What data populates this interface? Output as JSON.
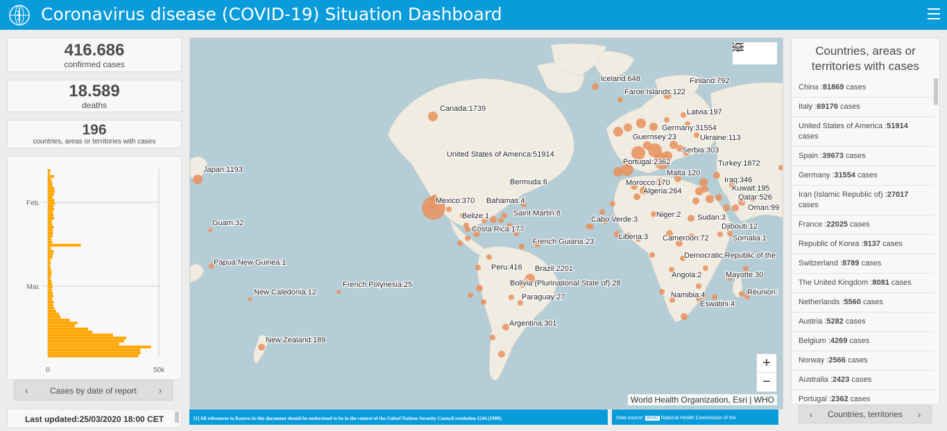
{
  "header": {
    "title": "Coronavirus disease (COVID-19) Situation Dashboard",
    "logo_icon": "who-emblem-icon",
    "menu_icon": "hamburger-menu-icon"
  },
  "stats": {
    "confirmed": {
      "value": "416.686",
      "label": "confirmed cases"
    },
    "deaths": {
      "value": "18.589",
      "label": "deaths"
    },
    "countries": {
      "value": "196",
      "label": "countries, areas or territories with cases"
    }
  },
  "chart_data": {
    "type": "bar",
    "orientation": "horizontal",
    "title": "",
    "xlabel": "",
    "ylabel": "",
    "xlim": [
      0,
      50000
    ],
    "x_ticks": [
      "0",
      "50k"
    ],
    "y_ticks": [
      "Feb.",
      "Mar."
    ],
    "color": "#ffa600",
    "grid": true,
    "values": [
      1200,
      900,
      2800,
      1500,
      1900,
      2100,
      2900,
      3100,
      2700,
      2200,
      2900,
      3200,
      2600,
      2800,
      2300,
      2500,
      2800,
      1800,
      2000,
      2600,
      2200,
      2300,
      2100,
      1600,
      2000,
      14800,
      1400,
      2600,
      2300,
      2100,
      1200,
      1300,
      1100,
      1400,
      1700,
      1600,
      1200,
      1700,
      1900,
      2100,
      1800,
      2200,
      2500,
      1900,
      2600,
      2400,
      2900,
      3700,
      5000,
      5700,
      9800,
      13300,
      12200,
      18100,
      20100,
      29300,
      35300,
      34400,
      32100,
      46400,
      41600,
      41700,
      40800
    ]
  },
  "chart_nav": {
    "caption": "Cases by date of report",
    "prev_icon": "chevron-left-icon",
    "next_icon": "chevron-right-icon"
  },
  "last_updated": "Last updated:25/03/2020 18:00 CET",
  "map": {
    "labels": [
      {
        "text": "Iceland:648",
        "x": 592,
        "y": 62
      },
      {
        "text": "Finland:792",
        "x": 720,
        "y": 65
      },
      {
        "text": "Faroe Islands:122",
        "x": 626,
        "y": 81
      },
      {
        "text": "Canada:1739",
        "x": 360,
        "y": 105
      },
      {
        "text": "Latvia:197",
        "x": 716,
        "y": 110
      },
      {
        "text": "Germany:31554",
        "x": 680,
        "y": 133
      },
      {
        "text": "Guernsey:23",
        "x": 638,
        "y": 146
      },
      {
        "text": "Ukraine:113",
        "x": 735,
        "y": 147
      },
      {
        "text": "United States of America:51914",
        "x": 370,
        "y": 171
      },
      {
        "text": "Serbia:303",
        "x": 709,
        "y": 165
      },
      {
        "text": "Japan:1193",
        "x": 19,
        "y": 193
      },
      {
        "text": "Portugal:2362",
        "x": 624,
        "y": 182
      },
      {
        "text": "Turkey:1872",
        "x": 761,
        "y": 184
      },
      {
        "text": "Malta:120",
        "x": 687,
        "y": 198
      },
      {
        "text": "Bermuda:6",
        "x": 461,
        "y": 211
      },
      {
        "text": "Morocco:170",
        "x": 628,
        "y": 212
      },
      {
        "text": "Iraq:346",
        "x": 770,
        "y": 208
      },
      {
        "text": "Algeria:264",
        "x": 653,
        "y": 224
      },
      {
        "text": "Kuwait:195",
        "x": 781,
        "y": 220
      },
      {
        "text": "Qatar:526",
        "x": 790,
        "y": 233
      },
      {
        "text": "Mexico:370",
        "x": 354,
        "y": 238
      },
      {
        "text": "Bahamas:4",
        "x": 427,
        "y": 238
      },
      {
        "text": "Oman:99",
        "x": 804,
        "y": 248
      },
      {
        "text": "Belize:1",
        "x": 392,
        "y": 260
      },
      {
        "text": "Saint Martin:8",
        "x": 466,
        "y": 256
      },
      {
        "text": "Niger:2",
        "x": 672,
        "y": 258
      },
      {
        "text": "Guam:32",
        "x": 32,
        "y": 270
      },
      {
        "text": "Cabo Verde:3",
        "x": 578,
        "y": 265
      },
      {
        "text": "Sudan:3",
        "x": 731,
        "y": 262
      },
      {
        "text": "Djibouti:12",
        "x": 766,
        "y": 275
      },
      {
        "text": "Costa Rica:177",
        "x": 406,
        "y": 279
      },
      {
        "text": "Liberia:3",
        "x": 618,
        "y": 290
      },
      {
        "text": "Cameroon:72",
        "x": 681,
        "y": 292
      },
      {
        "text": "Somalia:1",
        "x": 782,
        "y": 292
      },
      {
        "text": "French Guiana:23",
        "x": 494,
        "y": 297
      },
      {
        "text": "Democratic Republic of the",
        "x": 712,
        "y": 317
      },
      {
        "text": "Papua New Guinea:1",
        "x": 34,
        "y": 327
      },
      {
        "text": "Peru:416",
        "x": 434,
        "y": 334
      },
      {
        "text": "Brazil:2201",
        "x": 497,
        "y": 336
      },
      {
        "text": "Angola:2",
        "x": 694,
        "y": 345
      },
      {
        "text": "Mayotte:30",
        "x": 772,
        "y": 345
      },
      {
        "text": "French Polynesia:25",
        "x": 220,
        "y": 359
      },
      {
        "text": "Bolivia (Plurinational State of):28",
        "x": 461,
        "y": 357
      },
      {
        "text": "New Caledonia:12",
        "x": 92,
        "y": 370
      },
      {
        "text": "Réunion:",
        "x": 803,
        "y": 370
      },
      {
        "text": "Namibia:4",
        "x": 693,
        "y": 374
      },
      {
        "text": "Paraguay:27",
        "x": 478,
        "y": 377
      },
      {
        "text": "Eswatini:4",
        "x": 735,
        "y": 387
      },
      {
        "text": "Argentina:301",
        "x": 460,
        "y": 415
      },
      {
        "text": "New Zealand:189",
        "x": 109,
        "y": 439
      }
    ],
    "attribution": "World Health Organization, Esri | WHO",
    "legend_icon": "legend-list-icon",
    "layers_icon": "layers-icon",
    "zoom_in": "+",
    "zoom_out": "−"
  },
  "footnote": "[1] All references to Kosovo in this document should be understood to be in the context of the United Nations Security Council resolution 1244 (1999).",
  "data_source": {
    "prefix": "Data source:",
    "who": "WHO",
    "rest": "National Health Commission of the"
  },
  "right_panel": {
    "title": "Countries, areas or territories with cases",
    "items": [
      {
        "name": "China :",
        "count": "81869",
        "suffix": " cases"
      },
      {
        "name": "Italy :",
        "count": "69176",
        "suffix": " cases"
      },
      {
        "name": "United States of America :",
        "count": "51914",
        "suffix": " cases"
      },
      {
        "name": "Spain :",
        "count": "39673",
        "suffix": " cases"
      },
      {
        "name": "Germany :",
        "count": "31554",
        "suffix": " cases"
      },
      {
        "name": "Iran (Islamic Republic of) :",
        "count": "27017",
        "suffix": " cases"
      },
      {
        "name": "France :",
        "count": "22025",
        "suffix": " cases"
      },
      {
        "name": "Republic of Korea :",
        "count": "9137",
        "suffix": " cases"
      },
      {
        "name": "Switzerland :",
        "count": "8789",
        "suffix": " cases"
      },
      {
        "name": "The United Kingdom :",
        "count": "8081",
        "suffix": " cases"
      },
      {
        "name": "Netherlands :",
        "count": "5560",
        "suffix": " cases"
      },
      {
        "name": "Austria :",
        "count": "5282",
        "suffix": " cases"
      },
      {
        "name": "Belgium :",
        "count": "4269",
        "suffix": " cases"
      },
      {
        "name": "Norway :",
        "count": "2566",
        "suffix": " cases"
      },
      {
        "name": "Australia :",
        "count": "2423",
        "suffix": " cases"
      },
      {
        "name": "Portugal :",
        "count": "2362",
        "suffix": " cases"
      }
    ],
    "nav_caption": "Countries, territories",
    "prev_icon": "chevron-left-icon",
    "next_icon": "chevron-right-icon"
  },
  "colors": {
    "header": "#0a9bdb",
    "bar": "#ffa600",
    "bubble": "#e8915a",
    "ocean": "#b5cdd6",
    "land": "#f1ece1"
  }
}
